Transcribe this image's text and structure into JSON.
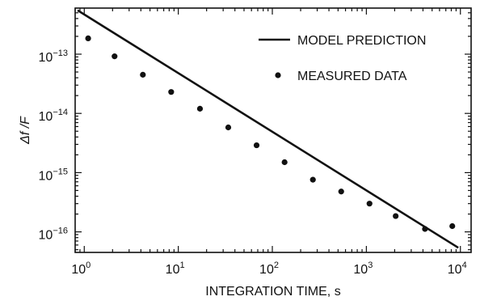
{
  "chart_data": {
    "type": "line",
    "title": "",
    "xlabel": "INTEGRATION TIME, s",
    "ylabel": "Δf /F",
    "x_scale": "log",
    "y_scale": "log",
    "xlim": [
      0.8,
      13000
    ],
    "ylim": [
      4.5e-17,
      6e-13
    ],
    "x_ticks": [
      {
        "value": 1,
        "base": "10",
        "exp": "0"
      },
      {
        "value": 10,
        "base": "10",
        "exp": "1"
      },
      {
        "value": 100,
        "base": "10",
        "exp": "2"
      },
      {
        "value": 1000,
        "base": "10",
        "exp": "3"
      },
      {
        "value": 10000,
        "base": "10",
        "exp": "4"
      }
    ],
    "y_ticks": [
      {
        "value": 1e-13,
        "base": "10",
        "exp": "−13"
      },
      {
        "value": 1e-14,
        "base": "10",
        "exp": "−14"
      },
      {
        "value": 1e-15,
        "base": "10",
        "exp": "−15"
      },
      {
        "value": 1e-16,
        "base": "10",
        "exp": "−16"
      }
    ],
    "grid": false,
    "legend_position": "top-right",
    "series": [
      {
        "name": "MODEL PREDICTION",
        "kind": "line",
        "color": "#111111",
        "x": [
          0.85,
          9500
        ],
        "y": [
          5.5e-13,
          5.4e-17
        ]
      },
      {
        "name": "MEASURED DATA",
        "kind": "scatter",
        "color": "#111111",
        "x": [
          1.1,
          2.1,
          4.2,
          8.4,
          17,
          34,
          68,
          135,
          270,
          540,
          1080,
          2050,
          4200,
          8200
        ],
        "y": [
          1.85e-13,
          9.2e-14,
          4.5e-14,
          2.3e-14,
          1.2e-14,
          5.8e-15,
          2.9e-15,
          1.5e-15,
          7.6e-16,
          4.8e-16,
          3e-16,
          1.85e-16,
          1.12e-16,
          1.25e-16
        ]
      }
    ]
  }
}
